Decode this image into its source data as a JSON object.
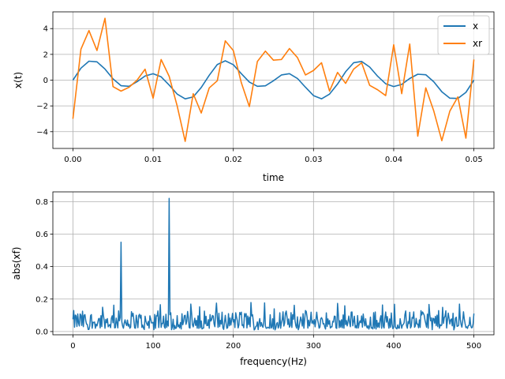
{
  "colors": {
    "x": "#1f77b4",
    "xr": "#ff7f0e",
    "spectrum": "#1f77b4",
    "grid": "#b0b0b0"
  },
  "chart_data": [
    {
      "type": "line",
      "title": "",
      "xlabel": "time",
      "ylabel": "x(t)",
      "xlim": [
        -0.0025,
        0.0525
      ],
      "ylim": [
        -5.3,
        5.3
      ],
      "xticks": [
        0.0,
        0.01,
        0.02,
        0.03,
        0.04,
        0.05
      ],
      "xtick_labels": [
        "0.00",
        "0.01",
        "0.02",
        "0.03",
        "0.04",
        "0.05"
      ],
      "yticks": [
        -4,
        -2,
        0,
        2,
        4
      ],
      "ytick_labels": [
        "−4",
        "−2",
        "0",
        "2",
        "4"
      ],
      "grid": true,
      "legend": "top-right",
      "x": [
        0.0,
        0.001,
        0.002,
        0.003,
        0.004,
        0.005,
        0.006,
        0.007,
        0.008,
        0.009,
        0.01,
        0.011,
        0.012,
        0.013,
        0.014,
        0.015,
        0.016,
        0.017,
        0.018,
        0.019,
        0.02,
        0.021,
        0.022,
        0.023,
        0.024,
        0.025,
        0.026,
        0.027,
        0.028,
        0.029,
        0.03,
        0.031,
        0.032,
        0.033,
        0.034,
        0.035,
        0.036,
        0.037,
        0.038,
        0.039,
        0.04,
        0.041,
        0.042,
        0.043,
        0.044,
        0.045,
        0.046,
        0.047,
        0.048,
        0.049,
        0.05
      ],
      "series": [
        {
          "name": "x",
          "color_key": "x",
          "values": [
            0.0,
            0.93,
            1.47,
            1.42,
            0.86,
            0.1,
            -0.43,
            -0.48,
            -0.12,
            0.32,
            0.5,
            0.26,
            -0.38,
            -1.08,
            -1.45,
            -1.3,
            -0.57,
            0.38,
            1.21,
            1.5,
            1.2,
            0.5,
            -0.15,
            -0.48,
            -0.44,
            -0.05,
            0.4,
            0.5,
            0.13,
            -0.55,
            -1.2,
            -1.45,
            -1.08,
            -0.3,
            0.65,
            1.35,
            1.45,
            1.02,
            0.3,
            -0.28,
            -0.5,
            -0.33,
            0.13,
            0.46,
            0.42,
            -0.13,
            -0.9,
            -1.4,
            -1.42,
            -0.95,
            0.0
          ]
        },
        {
          "name": "xr",
          "color_key": "xr",
          "values": [
            -3.0,
            2.4,
            3.85,
            2.3,
            4.8,
            -0.5,
            -0.85,
            -0.55,
            0.0,
            0.85,
            -1.4,
            1.6,
            0.3,
            -2.0,
            -4.75,
            -1.05,
            -2.55,
            -0.6,
            -0.05,
            3.05,
            2.3,
            -0.2,
            -2.05,
            1.45,
            2.25,
            1.55,
            1.6,
            2.45,
            1.75,
            0.4,
            0.75,
            1.35,
            -0.85,
            0.6,
            -0.25,
            0.85,
            1.35,
            -0.4,
            -0.75,
            -1.2,
            2.75,
            -1.05,
            2.8,
            -4.35,
            -0.6,
            -2.4,
            -4.7,
            -2.4,
            -1.3,
            -4.5,
            1.6
          ]
        }
      ]
    },
    {
      "type": "line",
      "title": "",
      "xlabel": "frequency(Hz)",
      "ylabel": "abs(xf)",
      "xlim": [
        -25,
        525
      ],
      "ylim": [
        -0.02,
        0.86
      ],
      "xticks": [
        0,
        100,
        200,
        300,
        400,
        500
      ],
      "xtick_labels": [
        "0",
        "100",
        "200",
        "300",
        "400",
        "500"
      ],
      "yticks": [
        0.0,
        0.2,
        0.4,
        0.6,
        0.8
      ],
      "ytick_labels": [
        "0.0",
        "0.2",
        "0.4",
        "0.6",
        "0.8"
      ],
      "grid": true,
      "frequency_range": [
        0,
        500
      ],
      "frequency_points": 501,
      "baseline_range": [
        0.0,
        0.18
      ],
      "peaks": [
        {
          "frequency": 60,
          "value": 0.55
        },
        {
          "frequency": 120,
          "value": 0.82
        }
      ],
      "series": [
        {
          "name": "",
          "color_key": "spectrum"
        }
      ]
    }
  ]
}
